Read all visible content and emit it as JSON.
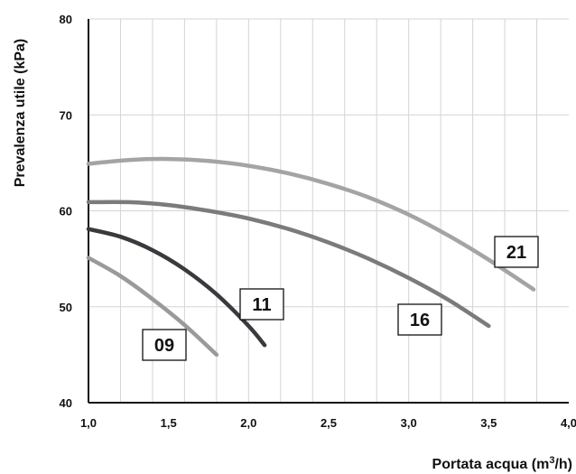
{
  "chart_data": {
    "type": "line",
    "xlabel": "Portata acqua (m",
    "xlabel_sup": "3",
    "xlabel_end": "/h)",
    "ylabel": "Prevalenza utile (kPa)",
    "xlim": [
      1.0,
      4.0
    ],
    "ylim": [
      40,
      80
    ],
    "x_ticks": [
      1.0,
      1.5,
      2.0,
      2.5,
      3.0,
      3.5,
      4.0
    ],
    "x_tick_labels": [
      "1,0",
      "1,5",
      "2,0",
      "2,5",
      "3,0",
      "3,5",
      "4,0"
    ],
    "y_ticks": [
      40,
      50,
      60,
      70,
      80
    ],
    "y_tick_labels": [
      "40",
      "50",
      "60",
      "70",
      "80"
    ],
    "grid": true,
    "series": [
      {
        "name": "09",
        "color": "#9a9a9a",
        "x": [
          1.0,
          1.2,
          1.4,
          1.6,
          1.8
        ],
        "y": [
          55.1,
          53.2,
          50.8,
          48.1,
          45.0
        ]
      },
      {
        "name": "11",
        "color": "#3a3a3e",
        "x": [
          1.0,
          1.2,
          1.4,
          1.6,
          1.8,
          2.0,
          2.1
        ],
        "y": [
          58.1,
          57.3,
          55.9,
          53.9,
          51.3,
          48.0,
          46.0
        ]
      },
      {
        "name": "16",
        "color": "#7b7b7b",
        "x": [
          1.0,
          1.25,
          1.5,
          1.75,
          2.0,
          2.25,
          2.5,
          2.75,
          3.0,
          3.25,
          3.5
        ],
        "y": [
          60.9,
          60.9,
          60.6,
          60.0,
          59.2,
          58.1,
          56.7,
          55.0,
          53.0,
          50.7,
          48.0
        ]
      },
      {
        "name": "21",
        "color": "#a4a4a4",
        "x": [
          1.0,
          1.25,
          1.5,
          1.75,
          2.0,
          2.25,
          2.5,
          2.75,
          3.0,
          3.25,
          3.5,
          3.78
        ],
        "y": [
          64.9,
          65.3,
          65.4,
          65.2,
          64.7,
          63.9,
          62.8,
          61.4,
          59.6,
          57.4,
          54.9,
          51.8
        ]
      }
    ]
  }
}
